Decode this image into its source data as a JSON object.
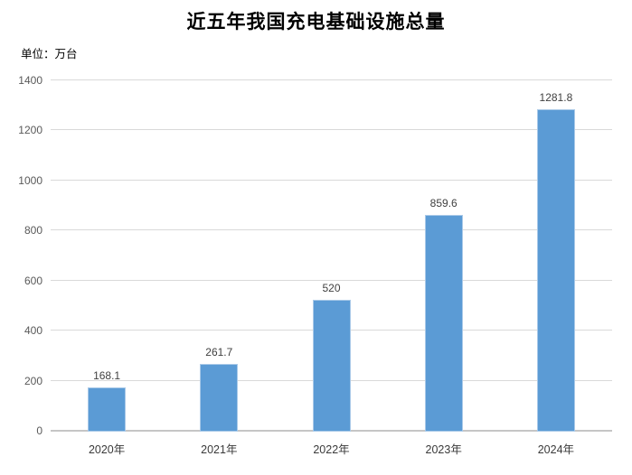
{
  "page": {
    "title": "近五年我国充电基础设施总量",
    "unit_label": "单位：万台"
  },
  "chart_data": {
    "type": "bar",
    "title": "近五年我国充电基础设施总量",
    "subtitle": "单位：万台",
    "categories": [
      "2020年",
      "2021年",
      "2022年",
      "2023年",
      "2024年"
    ],
    "values": [
      168.1,
      261.7,
      520,
      859.6,
      1281.8
    ],
    "value_labels": [
      "168.1",
      "261.7",
      "520",
      "859.6",
      "1281.8"
    ],
    "xlabel": "",
    "ylabel": "单位：万台",
    "ylim": [
      0,
      1400
    ],
    "yticks": [
      0,
      200,
      400,
      600,
      800,
      1000,
      1200,
      1400
    ],
    "grid": true,
    "legend": false,
    "colors": {
      "bar_fill": "#5B9BD5",
      "bar_edge": "#A9C9E8",
      "gridline": "#D9D9D9",
      "axis_line": "#C6C6C6",
      "ytick_label": "#595959",
      "xtick_label": "#3a3a3a",
      "value_label": "#404040"
    }
  }
}
